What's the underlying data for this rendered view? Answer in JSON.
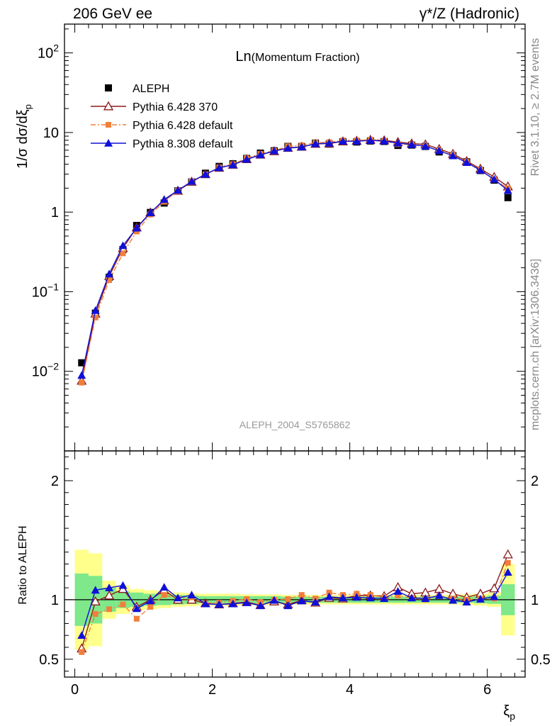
{
  "header": {
    "left": "206 GeV ee",
    "right": "γ*/Z (Hadronic)"
  },
  "side_labels": {
    "rivet": "Rivet 3.1.10, ≥ 2.7M events",
    "mcplots": "mcplots.cern.ch [arXiv:1306.3436]"
  },
  "chart_data": [
    {
      "type": "line",
      "panel": "main",
      "title": "Ln(Momentum Fraction)",
      "title_main": "Ln",
      "title_sub": "(Momentum Fraction)",
      "ylabel": "1/σ dσ/dξp",
      "ylabel_main": "1/σ dσ/dξ",
      "ylabel_sub": "p",
      "y_scale": "log",
      "ylim": [
        0.001,
        230
      ],
      "xlim": [
        -0.15,
        6.55
      ],
      "y_tick_labels": [
        {
          "value": 0.01,
          "base": "10",
          "exp": "−2"
        },
        {
          "value": 0.1,
          "base": "10",
          "exp": "−1"
        },
        {
          "value": 1,
          "base": "1",
          "exp": ""
        },
        {
          "value": 10,
          "base": "10",
          "exp": ""
        },
        {
          "value": 100,
          "base": "10",
          "exp": "2"
        }
      ],
      "watermark": "ALEPH_2004_S5765862",
      "legend_position": "top-left",
      "x": [
        0.1,
        0.3,
        0.5,
        0.7,
        0.9,
        1.1,
        1.3,
        1.5,
        1.7,
        1.9,
        2.1,
        2.3,
        2.5,
        2.7,
        2.9,
        3.1,
        3.3,
        3.5,
        3.7,
        3.9,
        4.1,
        4.3,
        4.5,
        4.7,
        4.9,
        5.1,
        5.3,
        5.5,
        5.7,
        5.9,
        6.1,
        6.3
      ],
      "data": {
        "name": "ALEPH",
        "color": "#000000",
        "values": [
          0.0128,
          0.0538,
          0.152,
          0.338,
          0.68,
          0.99,
          1.3,
          1.85,
          2.4,
          3.08,
          3.75,
          4.05,
          4.72,
          5.51,
          5.9,
          6.68,
          6.65,
          7.36,
          7.15,
          7.65,
          7.6,
          7.82,
          7.72,
          6.88,
          6.95,
          6.68,
          5.7,
          5.12,
          4.28,
          3.33,
          2.52,
          1.52
        ]
      },
      "series": [
        {
          "name": "Pythia 6.428 370",
          "color": "#8b1a1a",
          "marker": "open-triangle",
          "line": "solid",
          "values": [
            0.0076,
            0.053,
            0.157,
            0.352,
            0.64,
            0.99,
            1.4,
            1.85,
            2.4,
            2.99,
            3.6,
            3.93,
            4.62,
            5.26,
            5.8,
            6.41,
            6.61,
            7.19,
            7.27,
            7.72,
            7.86,
            8.07,
            7.96,
            7.59,
            7.28,
            7.08,
            6.2,
            5.38,
            4.37,
            3.5,
            2.76,
            2.1
          ]
        },
        {
          "name": "Pythia 6.428 default",
          "color": "#f07f3a",
          "marker": "filled-square",
          "line": "dashdot",
          "values": [
            0.0072,
            0.0474,
            0.14,
            0.303,
            0.571,
            0.93,
            1.35,
            1.87,
            2.44,
            2.98,
            3.66,
            4.01,
            4.75,
            5.39,
            5.9,
            6.71,
            6.92,
            7.43,
            7.56,
            7.96,
            7.97,
            8.14,
            7.87,
            7.12,
            7.05,
            6.7,
            5.88,
            5.17,
            4.28,
            3.36,
            2.55,
            1.99
          ]
        },
        {
          "name": "Pythia 8.308 default",
          "color": "#1010d8",
          "marker": "filled-triangle",
          "line": "solid",
          "values": [
            0.0089,
            0.0581,
            0.167,
            0.379,
            0.63,
            0.98,
            1.44,
            1.88,
            2.43,
            2.98,
            3.61,
            3.92,
            4.6,
            5.24,
            5.87,
            6.36,
            6.58,
            7.22,
            7.34,
            7.77,
            7.77,
            7.94,
            7.8,
            7.36,
            7.05,
            6.73,
            5.9,
            5.1,
            4.2,
            3.36,
            2.58,
            1.87
          ]
        }
      ]
    },
    {
      "type": "line",
      "panel": "ratio",
      "ylabel": "Ratio to ALEPH",
      "xlabel": "ξp",
      "xlabel_main": "ξ",
      "xlabel_sub": "p",
      "y_scale": "linear",
      "ylim": [
        0.35,
        2.25
      ],
      "xlim": [
        -0.15,
        6.55
      ],
      "y_ticks": [
        0.5,
        1,
        2
      ],
      "y_tick_labels": [
        "0.5",
        "1",
        "2"
      ],
      "x_ticks": [
        0,
        2,
        4,
        6
      ],
      "x_tick_labels": [
        "0",
        "2",
        "4",
        "6"
      ],
      "reference_line": 1,
      "x": [
        0.1,
        0.3,
        0.5,
        0.7,
        0.9,
        1.1,
        1.3,
        1.5,
        1.7,
        1.9,
        2.1,
        2.3,
        2.5,
        2.7,
        2.9,
        3.1,
        3.3,
        3.5,
        3.7,
        3.9,
        4.1,
        4.3,
        4.5,
        4.7,
        4.9,
        5.1,
        5.3,
        5.5,
        5.7,
        5.9,
        6.1,
        6.3
      ],
      "bin_width": 0.2,
      "uncertainty": {
        "inner_color": "#7ee88a",
        "outer_color": "#ffff8c",
        "inner_half": [
          0.22,
          0.2,
          0.1,
          0.07,
          0.06,
          0.05,
          0.045,
          0.04,
          0.035,
          0.03,
          0.03,
          0.03,
          0.03,
          0.03,
          0.03,
          0.025,
          0.025,
          0.025,
          0.025,
          0.025,
          0.025,
          0.025,
          0.025,
          0.025,
          0.025,
          0.025,
          0.025,
          0.025,
          0.025,
          0.03,
          0.035,
          0.13
        ],
        "outer_half": [
          0.42,
          0.39,
          0.16,
          0.12,
          0.09,
          0.08,
          0.07,
          0.06,
          0.055,
          0.05,
          0.05,
          0.05,
          0.045,
          0.045,
          0.045,
          0.04,
          0.04,
          0.04,
          0.04,
          0.04,
          0.04,
          0.04,
          0.04,
          0.04,
          0.04,
          0.04,
          0.04,
          0.04,
          0.045,
          0.05,
          0.06,
          0.3
        ]
      },
      "series": [
        {
          "name": "Pythia 6.428 370",
          "color": "#8b1a1a",
          "marker": "open-triangle",
          "line": "solid",
          "values": [
            0.59,
            0.985,
            1.035,
            1.09,
            0.94,
            1.0,
            1.08,
            1.0,
            1.0,
            0.97,
            0.96,
            0.97,
            0.98,
            0.955,
            0.985,
            0.96,
            0.995,
            0.975,
            1.015,
            1.01,
            1.035,
            1.035,
            1.03,
            1.105,
            1.05,
            1.06,
            1.09,
            1.05,
            1.02,
            1.05,
            1.095,
            1.38
          ]
        },
        {
          "name": "Pythia 6.428 default",
          "color": "#f07f3a",
          "marker": "filled-square",
          "line": "dashdot",
          "values": [
            0.56,
            0.88,
            0.92,
            0.96,
            0.84,
            0.94,
            1.04,
            1.01,
            1.02,
            0.97,
            0.975,
            0.99,
            1.005,
            0.98,
            1.0,
            1.005,
            1.04,
            1.01,
            1.06,
            1.04,
            1.05,
            1.04,
            1.02,
            1.035,
            1.015,
            1.0,
            1.03,
            1.01,
            1.0,
            1.01,
            1.01,
            1.31
          ]
        },
        {
          "name": "Pythia 8.308 default",
          "color": "#1010d8",
          "marker": "filled-triangle",
          "line": "solid",
          "values": [
            0.7,
            1.08,
            1.1,
            1.12,
            0.925,
            0.99,
            1.105,
            1.015,
            1.04,
            0.965,
            0.96,
            0.965,
            0.975,
            0.95,
            0.995,
            0.95,
            0.99,
            0.98,
            1.025,
            1.015,
            1.02,
            1.015,
            1.01,
            1.07,
            1.015,
            1.01,
            1.035,
            0.995,
            0.98,
            1.005,
            1.025,
            1.23
          ]
        }
      ]
    }
  ]
}
